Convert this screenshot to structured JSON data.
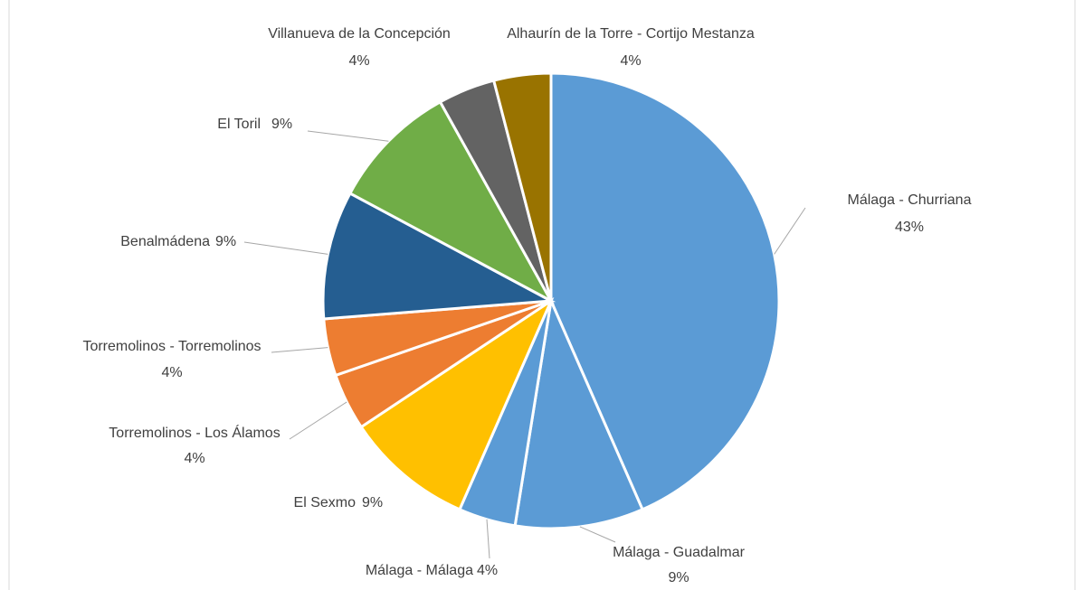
{
  "chart_data": {
    "type": "pie",
    "categories": [
      "Málaga  - Churriana",
      "Málaga  - Guadalmar",
      "Málaga  - Málaga",
      "El Sexmo",
      "Torremolinos  - Los Álamos",
      "Torremolinos  - Torremolinos",
      "Benalmádena",
      "El Toril",
      "Villanueva de la Concepción",
      "Alhaurín de la Torre  - Cortijo Mestanza"
    ],
    "values": [
      43,
      9,
      4,
      9,
      4,
      4,
      9,
      9,
      4,
      4
    ],
    "value_labels": [
      "43%",
      "9%",
      "4%",
      "9%",
      "4%",
      "4%",
      "9%",
      "9%",
      "4%",
      "4%"
    ],
    "colors": [
      "#5b9bd5",
      "#5b9bd5",
      "#5b9bd5",
      "#ffc000",
      "#ed7d31",
      "#ed7d31",
      "#255e91",
      "#70ad47",
      "#636363",
      "#997300"
    ]
  }
}
